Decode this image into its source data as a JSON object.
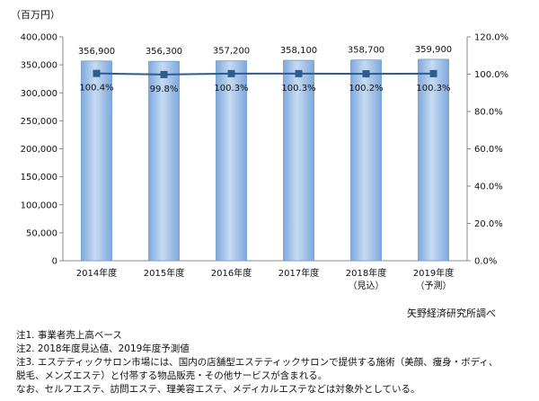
{
  "unit_label": "（百万円）",
  "source": "矢野経済研究所調べ",
  "notes": [
    "注1. 事業者売上高ベース",
    "注2. 2018年度見込値、2019年度予測値",
    "注3. エステティックサロン市場には、国内の店舗型エステティックサロンで提供する施術（美顔、痩身・ボディ、",
    "脱毛、メンズエステ）と付帯する物品販売・その他サービスが含まれる。",
    "なお、セルフエステ、訪問エステ、理美容エステ、メディカルエステなどは対象外としている。"
  ],
  "colors": {
    "bar_fill": "#9dc0e6",
    "bar_stroke": "#6f9bcf",
    "line": "#2f5b93",
    "marker": "#2f5b93",
    "axis": "#888888"
  },
  "chart_data": {
    "type": "bar",
    "categories": [
      "2014年度",
      "2015年度",
      "2016年度",
      "2017年度",
      "2018年度",
      "2019年度"
    ],
    "category_sublabels": [
      "",
      "",
      "",
      "",
      "（見込）",
      "（予測）"
    ],
    "series": [
      {
        "kind": "bar",
        "axis": "left",
        "values": [
          356900,
          356300,
          357200,
          358100,
          358700,
          359900
        ],
        "labels": [
          "356,900",
          "356,300",
          "357,200",
          "358,100",
          "358,700",
          "359,900"
        ]
      },
      {
        "kind": "line",
        "axis": "right",
        "values": [
          100.4,
          99.8,
          100.3,
          100.3,
          100.2,
          100.3
        ],
        "labels": [
          "100.4%",
          "99.8%",
          "100.3%",
          "100.3%",
          "100.2%",
          "100.3%"
        ]
      }
    ],
    "ylim_left": [
      0,
      400000
    ],
    "ylim_right": [
      0,
      120
    ],
    "yticks_left": [
      "0",
      "50,000",
      "100,000",
      "150,000",
      "200,000",
      "250,000",
      "300,000",
      "350,000",
      "400,000"
    ],
    "yticks_right": [
      "0.0%",
      "20.0%",
      "40.0%",
      "60.0%",
      "80.0%",
      "100.0%",
      "120.0%"
    ],
    "grid": false,
    "legend": "none"
  }
}
